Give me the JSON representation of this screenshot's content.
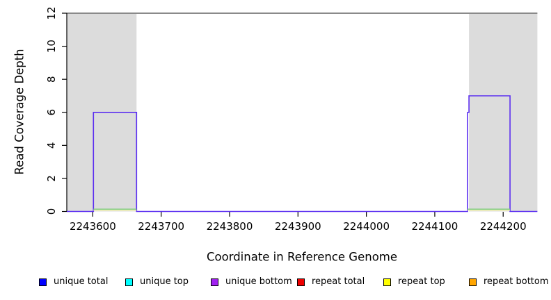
{
  "chart_data": {
    "type": "line",
    "subtype": "step-coverage",
    "title": "",
    "xlabel": "Coordinate in Reference Genome",
    "ylabel": "Read Coverage Depth",
    "xlim": [
      2243562,
      2244250
    ],
    "ylim": [
      0,
      12
    ],
    "x_ticks": [
      2243600,
      2243700,
      2243800,
      2243900,
      2244000,
      2244100,
      2244200
    ],
    "y_ticks": [
      0,
      2,
      4,
      6,
      8,
      10,
      12
    ],
    "grid": false,
    "legend_position": "bottom",
    "shaded_regions": [
      {
        "name": "repeat-region-left",
        "x0": 2243562,
        "x1": 2243664,
        "y0": 0,
        "y1": 12,
        "color": "#dcdcdc"
      },
      {
        "name": "repeat-region-right",
        "x0": 2244150,
        "x1": 2244250,
        "y0": 0,
        "y1": 12,
        "color": "#dcdcdc"
      }
    ],
    "max_depth_line": {
      "y": 12,
      "color": "#8a8a8a"
    },
    "series": [
      {
        "name": "unique bottom coverage",
        "color": "#5b2ef0",
        "style": "step",
        "points": [
          [
            2243562,
            0
          ],
          [
            2243601,
            0
          ],
          [
            2243601,
            6
          ],
          [
            2243664,
            6
          ],
          [
            2243664,
            0
          ],
          [
            2244148,
            0
          ],
          [
            2244148,
            6
          ],
          [
            2244150,
            6
          ],
          [
            2244150,
            7
          ],
          [
            2244210,
            7
          ],
          [
            2244210,
            0
          ],
          [
            2244250,
            0
          ]
        ]
      },
      {
        "name": "baseline overlap green",
        "color": "#7bcd7b",
        "style": "baseline-segment",
        "x_ranges": [
          [
            2243601,
            2243664
          ],
          [
            2244148,
            2244210
          ]
        ]
      },
      {
        "name": "baseline overlap pale yellow",
        "color": "#f2f2aa",
        "style": "baseline-segment",
        "x_ranges": [
          [
            2243601,
            2243664
          ],
          [
            2244148,
            2244210
          ]
        ]
      }
    ],
    "legend": [
      {
        "label": "unique total",
        "color": "#0000ff"
      },
      {
        "label": "unique top",
        "color": "#00ffff"
      },
      {
        "label": "unique bottom",
        "color": "#a020f0"
      },
      {
        "label": "repeat total",
        "color": "#ee0000"
      },
      {
        "label": "repeat top",
        "color": "#ffff00"
      },
      {
        "label": "repeat bottom",
        "color": "#ffa500"
      }
    ],
    "axis_color": "#000000"
  }
}
